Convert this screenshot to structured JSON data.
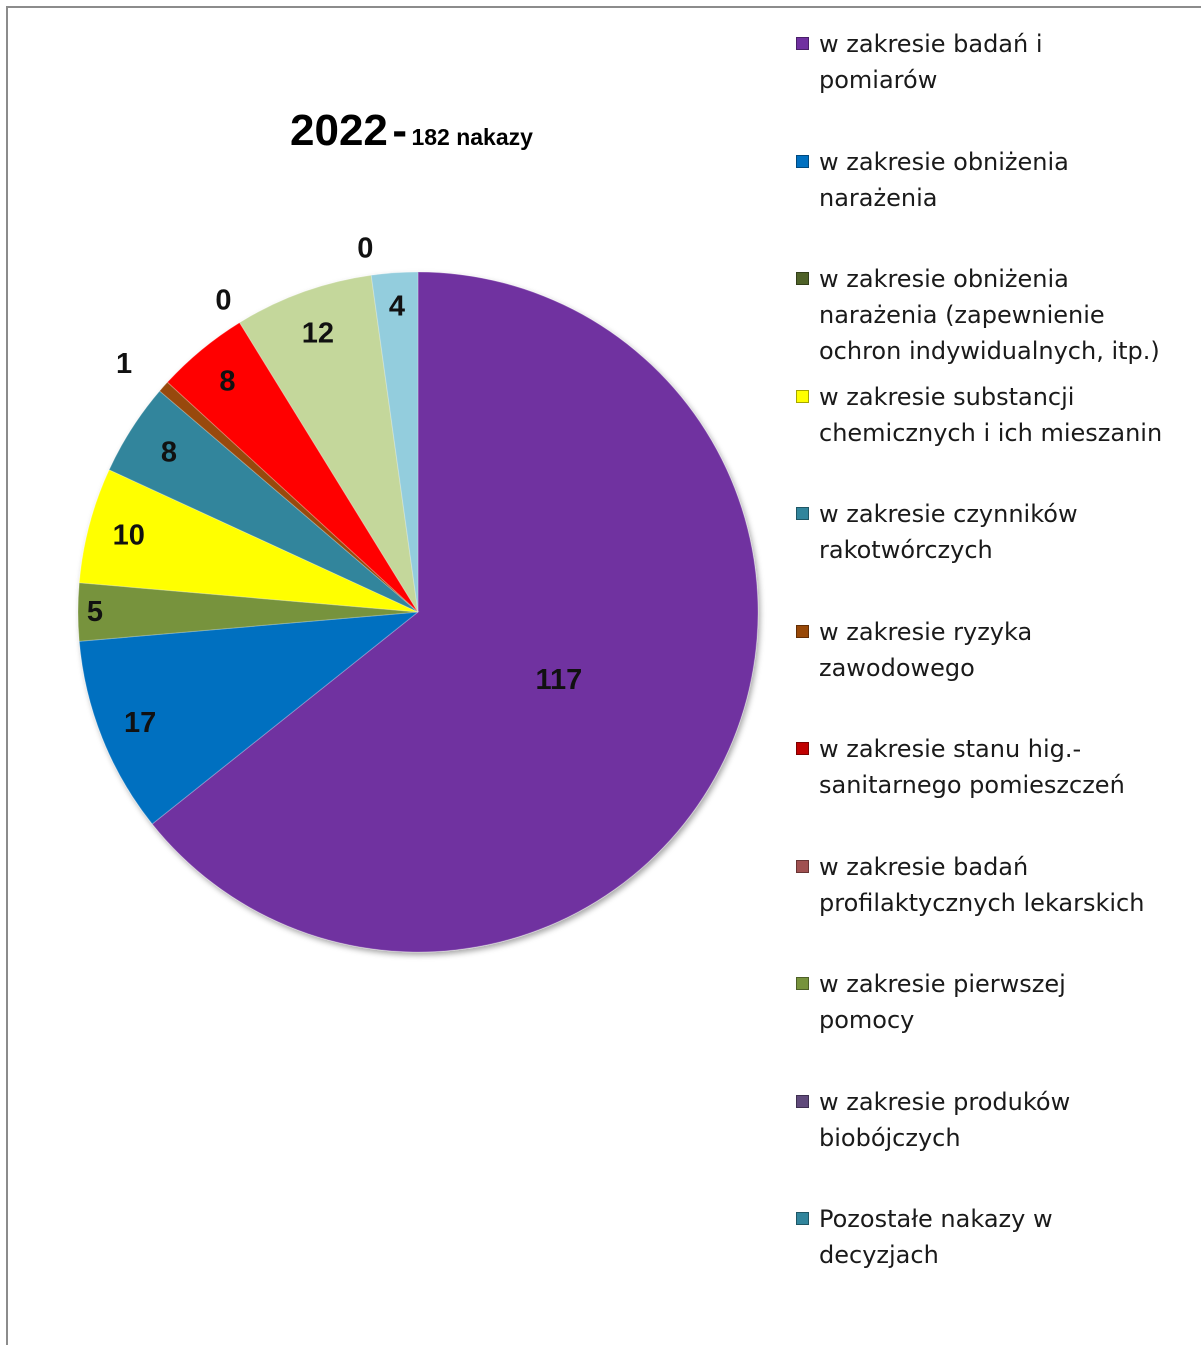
{
  "title": {
    "year": "2022",
    "separator": "-",
    "count": "182 nakazy"
  },
  "chart_data": {
    "type": "pie",
    "slices": [
      {
        "label": "w zakresie badań i pomiarów",
        "value": 117,
        "color": "#7030a0"
      },
      {
        "label": "w zakresie obniżenia narażenia",
        "value": 17,
        "color": "#0070c0"
      },
      {
        "label": "w zakresie obniżenia narażenia (zapewnienie ochron indywidualnych, itp.)",
        "value": 5,
        "color": "#77933c"
      },
      {
        "label": "w zakresie substancji chemicznych i ich mieszanin",
        "value": 10,
        "color": "#ffff00"
      },
      {
        "label": "w zakresie czynników rakotwórczych",
        "value": 8,
        "color": "#31859c"
      },
      {
        "label": "w zakresie ryzyka zawodowego",
        "value": 1,
        "color": "#984807"
      },
      {
        "label": "w zakresie stanu hig.-sanitarnego pomieszczeń",
        "value": 8,
        "color": "#ff0000"
      },
      {
        "label": "w zakresie badań profilaktycznych lekarskich",
        "value": 0,
        "color": "#8e4848"
      },
      {
        "label": "w zakresie pierwszej pomocy",
        "value": 12,
        "color": "#c4d79b"
      },
      {
        "label": " w zakresie produków biobójczych",
        "value": 0,
        "color": "#604a7b"
      },
      {
        "label": "Pozostałe nakazy w decyzjach",
        "value": 4,
        "color": "#93cddd"
      }
    ],
    "legend_position": "right"
  },
  "legend": {
    "items": [
      {
        "label": "w zakresie badań i\npomiarów",
        "color": "#7030a0"
      },
      {
        "label": "w zakresie obniżenia\nnarażenia",
        "color": "#0070c0"
      },
      {
        "label": "w zakresie obniżenia\nnarażenia (zapewnienie\nochron indywidualnych, itp.)",
        "color": "#4f6228"
      },
      {
        "label": "w zakresie substancji\nchemicznych i ich mieszanin",
        "color": "#ffff00"
      },
      {
        "label": "w zakresie czynników\nrakotwórczych",
        "color": "#31859c"
      },
      {
        "label": "w zakresie ryzyka\nzawodowego",
        "color": "#984807"
      },
      {
        "label": "w zakresie stanu hig.-\nsanitarnego pomieszczeń",
        "color": "#c00000"
      },
      {
        "label": "w zakresie badań\nprofilaktycznych lekarskich",
        "color": "#a05050"
      },
      {
        "label": "w zakresie pierwszej\npomocy",
        "color": "#77933c"
      },
      {
        "label": " w zakresie produków\nbiobójczych",
        "color": "#604a7b"
      },
      {
        "label": "Pozostałe nakazy w\ndecyzjach",
        "color": "#31859c"
      }
    ]
  }
}
